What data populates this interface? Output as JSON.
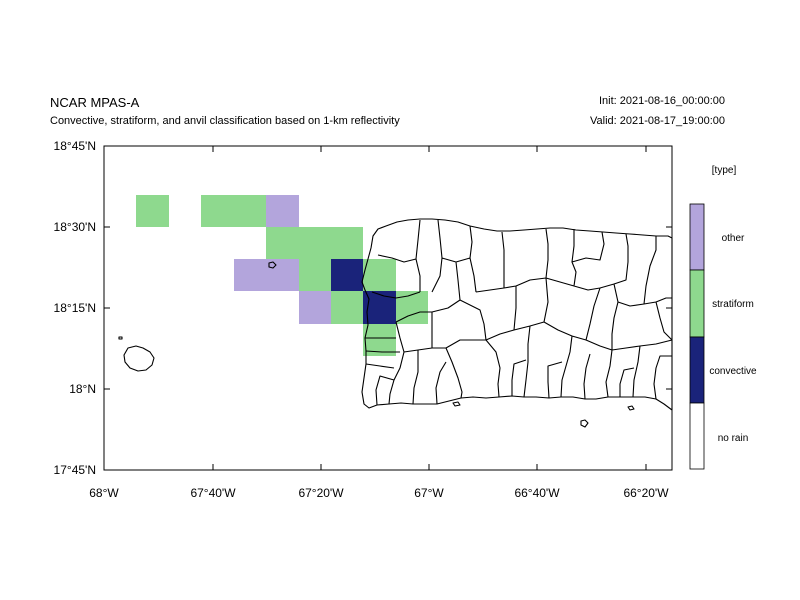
{
  "header": {
    "title": "NCAR MPAS-A",
    "subtitle": "Convective, stratiform, and anvil classification based on 1-km reflectivity",
    "init": "Init: 2021-08-16_00:00:00",
    "valid": "Valid: 2021-08-17_19:00:00"
  },
  "axes": {
    "lat_labels": [
      "18°45'N",
      "18°30'N",
      "18°15'N",
      "18°N",
      "17°45'N"
    ],
    "lon_labels": [
      "68°W",
      "67°40'W",
      "67°20'W",
      "67°W",
      "66°40'W",
      "66°20'W"
    ]
  },
  "legend": {
    "title": "[type]",
    "items": [
      {
        "label": "other",
        "color": "#b3a5dc"
      },
      {
        "label": "stratiform",
        "color": "#8ed98e"
      },
      {
        "label": "convective",
        "color": "#1a237a"
      },
      {
        "label": "no rain",
        "color": "#ffffff"
      }
    ]
  },
  "colors": {
    "other": "#b3a5dc",
    "stratiform": "#8ed98e",
    "convective": "#1a237a"
  }
}
